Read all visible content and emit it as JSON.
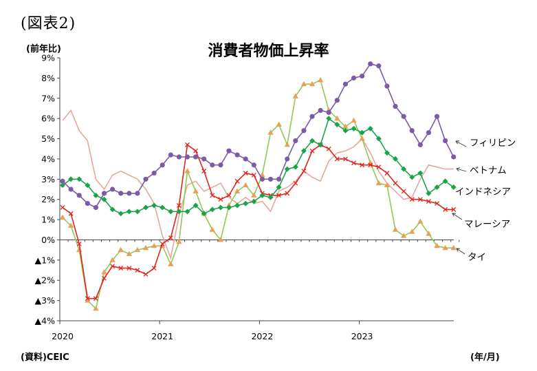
{
  "figure_label": "(図表2)",
  "unit_label": "(前年比)",
  "source_label": "(資料)CEIC",
  "x_unit_label": "(年/月)",
  "chart_data": {
    "type": "line",
    "title": "消費者物価上昇率",
    "xlabel": "",
    "ylabel": "(前年比)",
    "ylim": [
      -4,
      9
    ],
    "y_ticks": [
      {
        "value": 9,
        "label": "9%"
      },
      {
        "value": 8,
        "label": "8%"
      },
      {
        "value": 7,
        "label": "7%"
      },
      {
        "value": 6,
        "label": "6%"
      },
      {
        "value": 5,
        "label": "5%"
      },
      {
        "value": 4,
        "label": "4%"
      },
      {
        "value": 3,
        "label": "3%"
      },
      {
        "value": 2,
        "label": "2%"
      },
      {
        "value": 1,
        "label": "1%"
      },
      {
        "value": 0,
        "label": "0%"
      },
      {
        "value": -1,
        "label": "▲1%"
      },
      {
        "value": -2,
        "label": "▲2%"
      },
      {
        "value": -3,
        "label": "▲3%"
      },
      {
        "value": -4,
        "label": "▲4%"
      }
    ],
    "x_ticks": [
      {
        "index": 0,
        "label": "2020"
      },
      {
        "index": 12,
        "label": "2021"
      },
      {
        "index": 24,
        "label": "2022"
      },
      {
        "index": 36,
        "label": "2023"
      }
    ],
    "x_start": "2020/01",
    "grid": false,
    "legend": "direct labels at right end of each line",
    "series": [
      {
        "name": "フィリピン",
        "color": "#7B5AA6",
        "marker": "circle",
        "values": [
          2.9,
          2.5,
          2.2,
          1.8,
          1.6,
          2.3,
          2.5,
          2.3,
          2.3,
          2.3,
          3.0,
          3.3,
          3.7,
          4.2,
          4.1,
          4.1,
          4.1,
          4.0,
          3.7,
          3.7,
          4.4,
          4.2,
          4.0,
          3.7,
          3.0,
          3.0,
          3.0,
          4.0,
          4.9,
          5.4,
          6.1,
          6.4,
          6.3,
          6.9,
          7.7,
          8.0,
          8.1,
          8.7,
          8.6,
          7.6,
          6.6,
          6.1,
          5.4,
          4.7,
          5.3,
          6.1,
          4.9,
          4.1
        ]
      },
      {
        "name": "ベトナム",
        "color": "#E6A89A",
        "marker": "none",
        "values": [
          5.9,
          6.4,
          5.4,
          4.9,
          3.0,
          2.5,
          3.2,
          3.4,
          3.2,
          3.0,
          2.5,
          1.8,
          0.2,
          -0.9,
          1.2,
          2.7,
          2.9,
          2.4,
          2.6,
          2.8,
          2.1,
          1.8,
          2.1,
          1.8,
          1.9,
          1.4,
          2.4,
          2.6,
          2.9,
          3.4,
          3.1,
          2.9,
          3.9,
          4.3,
          4.4,
          4.6,
          5.0,
          4.3,
          3.4,
          2.8,
          2.4,
          2.0,
          2.1,
          3.0,
          3.7,
          3.6,
          3.5,
          3.5
        ]
      },
      {
        "name": "インドネシア",
        "color": "#1BA34A",
        "marker": "diamond",
        "values": [
          2.7,
          3.0,
          3.0,
          2.7,
          2.2,
          2.0,
          1.5,
          1.3,
          1.4,
          1.4,
          1.6,
          1.7,
          1.6,
          1.4,
          1.4,
          1.4,
          1.7,
          1.3,
          1.5,
          1.6,
          1.6,
          1.7,
          1.8,
          1.9,
          2.2,
          2.1,
          2.6,
          3.5,
          3.6,
          4.4,
          4.9,
          4.7,
          6.0,
          5.7,
          5.4,
          5.5,
          5.3,
          5.5,
          5.0,
          4.3,
          4.0,
          3.5,
          3.1,
          3.3,
          2.3,
          2.6,
          2.9,
          2.6
        ]
      },
      {
        "name": "マレーシア",
        "color": "#E0241C",
        "marker": "x",
        "values": [
          1.6,
          1.3,
          -0.2,
          -2.9,
          -2.9,
          -1.9,
          -1.3,
          -1.4,
          -1.4,
          -1.5,
          -1.7,
          -1.4,
          -0.2,
          0.1,
          1.7,
          4.7,
          4.4,
          3.4,
          2.2,
          2.0,
          2.2,
          2.9,
          3.3,
          3.2,
          2.3,
          2.2,
          2.2,
          2.3,
          2.8,
          3.4,
          4.4,
          4.7,
          4.5,
          4.0,
          4.0,
          3.8,
          3.7,
          3.7,
          3.6,
          3.3,
          2.8,
          2.4,
          2.0,
          2.0,
          1.9,
          1.8,
          1.5,
          1.5
        ]
      },
      {
        "name": "タイ",
        "color": "#8FC956",
        "marker": "triangle",
        "marker_color": "#E8A05A",
        "values": [
          1.1,
          0.7,
          -0.5,
          -3.0,
          -3.4,
          -1.6,
          -1.0,
          -0.5,
          -0.7,
          -0.5,
          -0.4,
          -0.3,
          -0.3,
          -1.2,
          -0.1,
          3.4,
          2.4,
          1.3,
          0.5,
          0.0,
          1.7,
          2.4,
          2.7,
          2.2,
          3.2,
          5.3,
          5.7,
          4.7,
          7.1,
          7.7,
          7.7,
          7.9,
          6.4,
          6.0,
          5.6,
          5.9,
          5.0,
          3.8,
          2.8,
          2.7,
          0.5,
          0.2,
          0.4,
          0.9,
          0.3,
          -0.3,
          -0.4,
          -0.4
        ]
      }
    ]
  }
}
